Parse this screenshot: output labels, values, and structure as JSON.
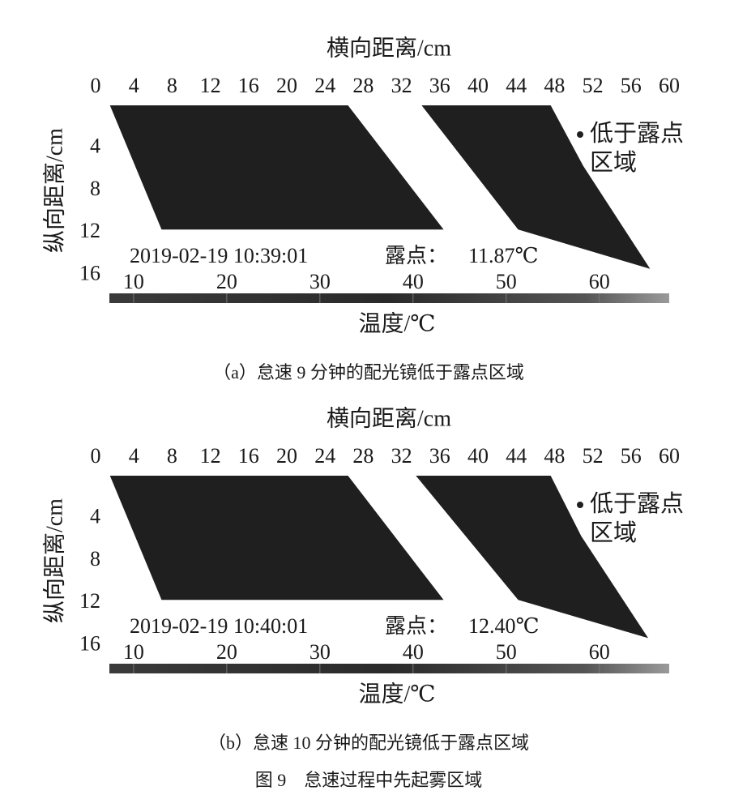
{
  "chart_data": [
    {
      "type": "region",
      "title": "横向距离/cm",
      "ylabel": "纵向距离/cm",
      "xlim": [
        0,
        60
      ],
      "xticks": [
        0,
        4,
        8,
        12,
        16,
        20,
        24,
        28,
        32,
        36,
        40,
        44,
        48,
        52,
        56,
        60
      ],
      "ylim": [
        0,
        16
      ],
      "yticks": [
        4,
        8,
        12,
        16
      ],
      "series": [
        {
          "name": "低于露点区域",
          "color": "#1f1f1f",
          "polygons": [
            {
              "x": [
                1.5,
                26.4,
                36.4,
                6.9
              ],
              "y": [
                0,
                0,
                11.7,
                11.7
              ]
            },
            {
              "x": [
                34.1,
                47.6,
                51.0,
                58.0,
                44.2
              ],
              "y": [
                0,
                0,
                5.7,
                15.4,
                11.7
              ]
            }
          ]
        }
      ],
      "annotation": {
        "time": "2019-02-19 10:39:01",
        "label": "露点：",
        "value": "11.87℃"
      },
      "colorbar": {
        "label": "温度/℃",
        "lim": [
          7.4,
          67.5
        ],
        "ticks": [
          10,
          20,
          30,
          40,
          50,
          60
        ]
      },
      "caption": "（a）怠速 9 分钟的配光镜低于露点区域"
    },
    {
      "type": "region",
      "title": "横向距离/cm",
      "ylabel": "纵向距离/cm",
      "xlim": [
        0,
        60
      ],
      "xticks": [
        0,
        4,
        8,
        12,
        16,
        20,
        24,
        28,
        32,
        36,
        40,
        44,
        48,
        52,
        56,
        60
      ],
      "ylim": [
        0,
        16
      ],
      "yticks": [
        4,
        8,
        12,
        16
      ],
      "series": [
        {
          "name": "低于露点区域",
          "color": "#1f1f1f",
          "polygons": [
            {
              "x": [
                1.5,
                26.4,
                36.4,
                6.9
              ],
              "y": [
                0,
                0,
                11.7,
                11.7
              ]
            },
            {
              "x": [
                33.5,
                47.6,
                50.8,
                57.8,
                44.2
              ],
              "y": [
                0,
                0,
                5.7,
                15.3,
                11.7
              ]
            }
          ]
        }
      ],
      "annotation": {
        "time": "2019-02-19 10:40:01",
        "label": "露点：",
        "value": "12.40℃"
      },
      "colorbar": {
        "label": "温度/℃",
        "lim": [
          7.4,
          67.5
        ],
        "ticks": [
          10,
          20,
          30,
          40,
          50,
          60
        ]
      },
      "caption": "（b）怠速 10 分钟的配光镜低于露点区域"
    }
  ],
  "figure_caption": "图 9　怠速过程中先起雾区域"
}
